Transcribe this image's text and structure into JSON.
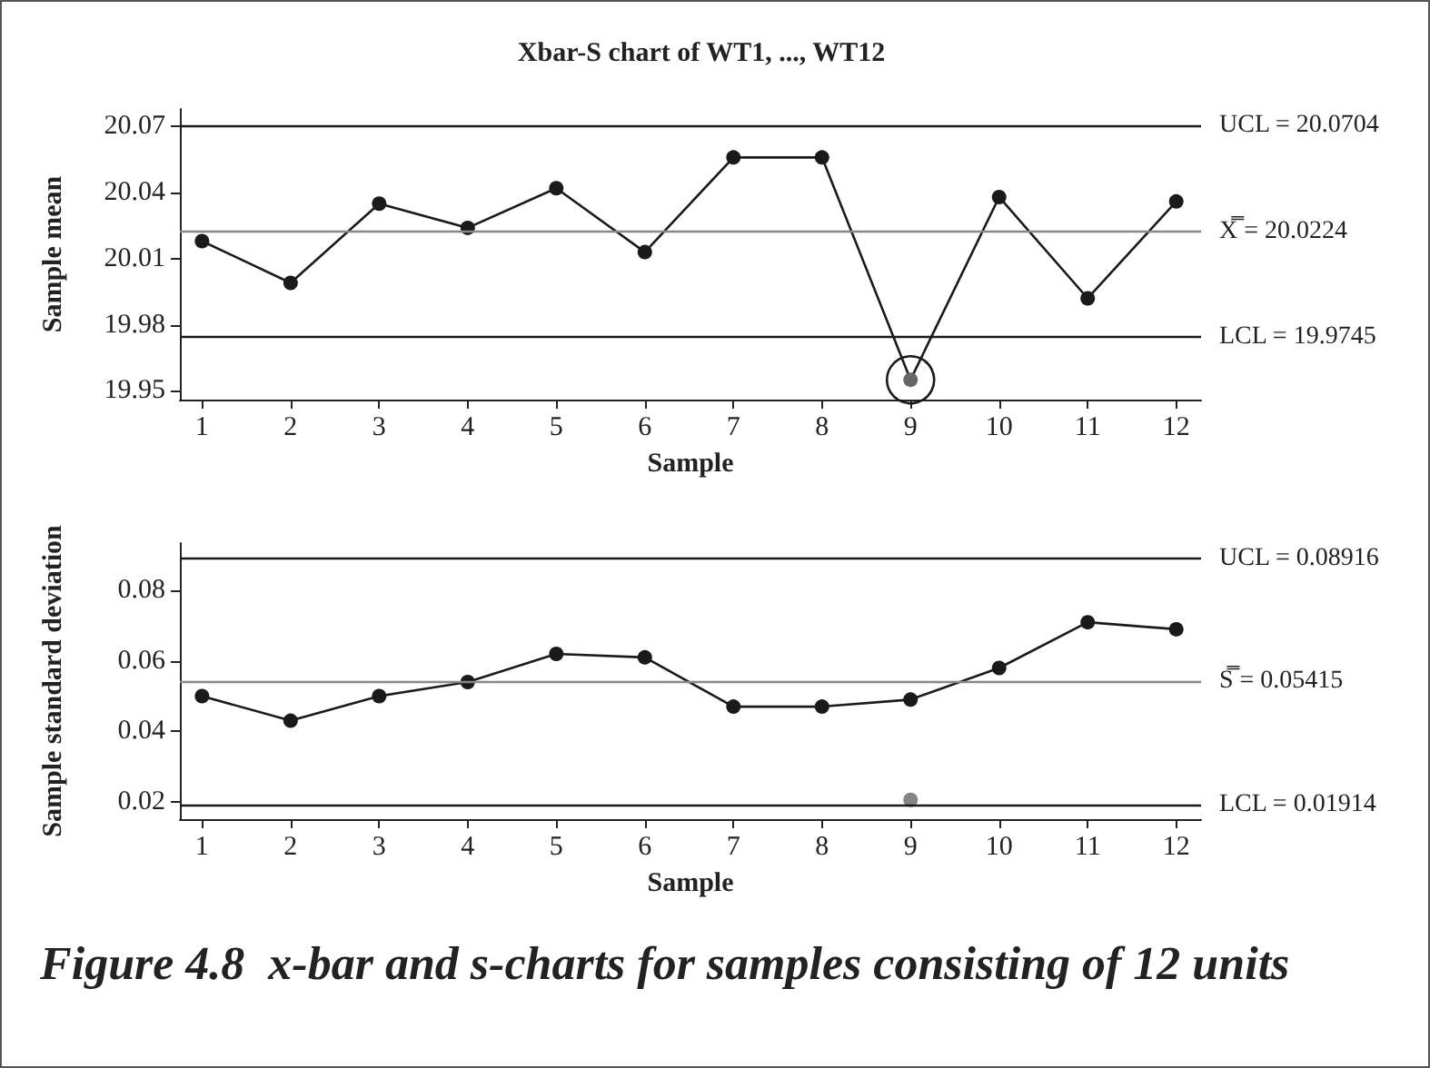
{
  "chart_data": [
    {
      "type": "line",
      "title": "Xbar-S chart of WT1, ..., WT12",
      "xlabel": "Sample",
      "ylabel": "Sample mean",
      "x": [
        1,
        2,
        3,
        4,
        5,
        6,
        7,
        8,
        9,
        10,
        11,
        12
      ],
      "xlim": [
        0.75,
        12.28
      ],
      "xticks": [
        1,
        2,
        3,
        4,
        5,
        6,
        7,
        8,
        9,
        10,
        11,
        12
      ],
      "ylim": [
        19.946,
        20.078
      ],
      "yticks": [
        19.95,
        19.98,
        20.01,
        20.04,
        20.07
      ],
      "series": [
        {
          "color": "#1a1a1a",
          "colors": [
            "#1a1a1a",
            "#1a1a1a",
            "#1a1a1a",
            "#1a1a1a",
            "#1a1a1a",
            "#1a1a1a",
            "#1a1a1a",
            "#1a1a1a",
            "#666666",
            "#1a1a1a",
            "#1a1a1a",
            "#1a1a1a"
          ],
          "values": [
            20.018,
            19.999,
            20.035,
            20.024,
            20.042,
            20.013,
            20.056,
            20.056,
            19.955,
            20.038,
            19.992,
            20.036
          ]
        }
      ],
      "ref_lines": [
        {
          "axis": "y",
          "value": 20.0704,
          "label": "UCL = 20.0704",
          "color": "#1a1a1a"
        },
        {
          "axis": "y",
          "value": 20.0224,
          "label": "X̿ = 20.0224",
          "color": "#888888"
        },
        {
          "axis": "y",
          "value": 19.9745,
          "label": "LCL = 19.9745",
          "color": "#1a1a1a"
        }
      ],
      "grid": false,
      "marker": "circle",
      "line_style": "solid"
    },
    {
      "type": "line",
      "xlabel": "Sample",
      "ylabel": "Sample standard deviation",
      "x": [
        1,
        2,
        3,
        4,
        5,
        6,
        7,
        8,
        9,
        10,
        11,
        12
      ],
      "xlim": [
        0.75,
        12.28
      ],
      "xticks": [
        1,
        2,
        3,
        4,
        5,
        6,
        7,
        8,
        9,
        10,
        11,
        12
      ],
      "ylim": [
        0.015,
        0.0935
      ],
      "yticks": [
        0.02,
        0.04,
        0.06,
        0.08
      ],
      "series": [
        {
          "color": "#1a1a1a",
          "values": [
            0.05,
            0.043,
            0.05,
            0.054,
            0.062,
            0.061,
            0.047,
            0.047,
            0.049,
            0.058,
            0.071,
            0.069
          ]
        },
        {
          "type": "scatter",
          "color": "#666666",
          "x": [
            9
          ],
          "values": [
            0.0205
          ]
        }
      ],
      "ref_lines": [
        {
          "axis": "y",
          "value": 0.08916,
          "label": "UCL = 0.08916",
          "color": "#1a1a1a"
        },
        {
          "axis": "y",
          "value": 0.05415,
          "label": "S̿ = 0.05415",
          "color": "#888888"
        },
        {
          "axis": "y",
          "value": 0.01914,
          "label": "LCL = 0.01914",
          "color": "#1a1a1a"
        }
      ],
      "annotations": [
        "Figure 4.8  x-bar and s-charts for samples consisting of 12 units"
      ],
      "grid": false,
      "marker": "circle",
      "line_style": "solid"
    }
  ]
}
